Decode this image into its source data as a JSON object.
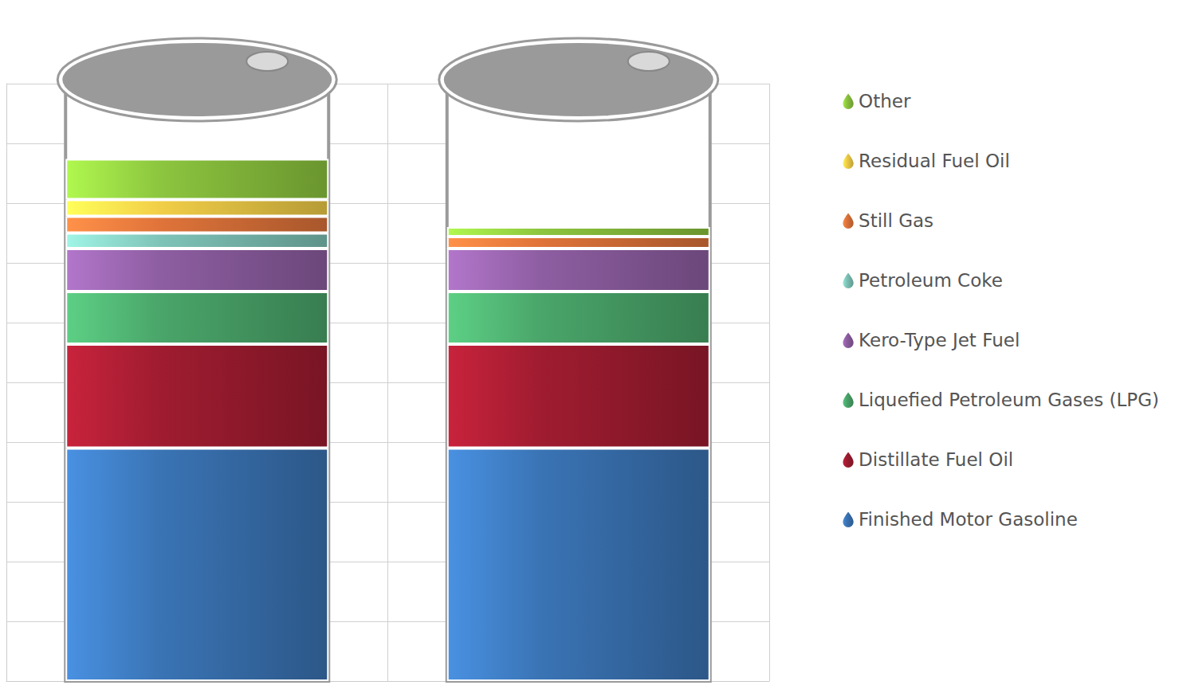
{
  "chart_data": {
    "type": "bar",
    "stacked": true,
    "grid": true,
    "legend": "right",
    "tick_labels": false,
    "categories": [
      null,
      null
    ],
    "ylim": [
      0,
      50
    ],
    "yticks": [
      0,
      5,
      10,
      15,
      20,
      25,
      30,
      35,
      40,
      45,
      50
    ],
    "series": [
      {
        "name": "Finished Motor Gasoline",
        "color": "#3a74b5",
        "values": [
          19.5,
          19.5
        ]
      },
      {
        "name": "Distillate Fuel Oil",
        "color": "#a01c30",
        "values": [
          8.7,
          8.7
        ]
      },
      {
        "name": "Liquefied Petroleum Gases (LPG)",
        "color": "#4aa66a",
        "values": [
          4.4,
          4.4
        ]
      },
      {
        "name": "Kero-Type Jet Fuel",
        "color": "#8e5ea2",
        "values": [
          3.6,
          3.6
        ]
      },
      {
        "name": "Petroleum Coke",
        "color": "#7fc4b8",
        "values": [
          1.3,
          0
        ]
      },
      {
        "name": "Still Gas",
        "color": "#e0743a",
        "values": [
          1.4,
          1.0
        ]
      },
      {
        "name": "Residual Fuel Oil",
        "color": "#f2cf48",
        "values": [
          1.4,
          0
        ]
      },
      {
        "name": "Other",
        "color": "#8dc63f",
        "values": [
          3.4,
          0.8
        ]
      }
    ]
  }
}
